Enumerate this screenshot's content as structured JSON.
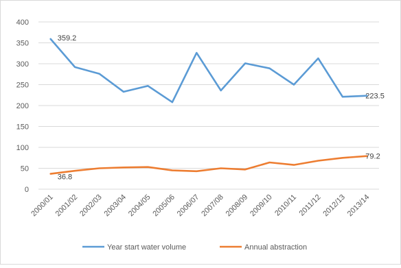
{
  "chart_data": {
    "type": "line",
    "title": "",
    "xlabel": "",
    "ylabel": "",
    "ylim": [
      0,
      400
    ],
    "yticks": [
      "0",
      "50",
      "100",
      "150",
      "200",
      "250",
      "300",
      "350",
      "400"
    ],
    "categories": [
      "2000/01",
      "2001/02",
      "2002/03",
      "2003/04",
      "2004/05",
      "2005/06",
      "2006/07",
      "2007/08",
      "2008/09",
      "2009/10",
      "2010/11",
      "2011/12",
      "2012/13",
      "2013/14"
    ],
    "grid": true,
    "legend": "bottom",
    "series": [
      {
        "name": "Year start water volume",
        "color": "#5b9bd5",
        "values": [
          359.2,
          292,
          276,
          233,
          247,
          208,
          326,
          236,
          301,
          289,
          250,
          313,
          221,
          223.5
        ]
      },
      {
        "name": "Annual abstraction",
        "color": "#ed7d31",
        "values": [
          36.8,
          44,
          50,
          52,
          53,
          45,
          43,
          50,
          47,
          64,
          58,
          68,
          75,
          79.2
        ]
      }
    ],
    "annotations": [
      {
        "series": 0,
        "index": 0,
        "text": "359.2"
      },
      {
        "series": 0,
        "index": 13,
        "text": "223.5"
      },
      {
        "series": 1,
        "index": 0,
        "text": "36.8"
      },
      {
        "series": 1,
        "index": 13,
        "text": "79.2"
      }
    ]
  }
}
